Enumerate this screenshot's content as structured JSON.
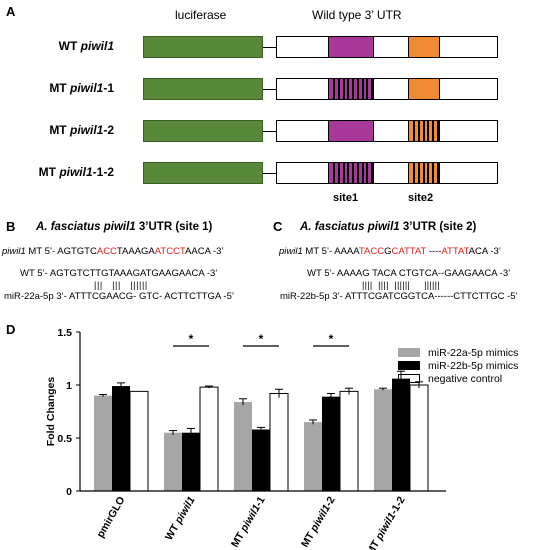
{
  "panel_a": {
    "letter": "A",
    "header_luciferase": "luciferase",
    "header_utr": "Wild type 3’ UTR",
    "rows": [
      {
        "prefix": "WT ",
        "gene": "piwil1",
        "suffix": "",
        "site1_mut": false,
        "site2_mut": false
      },
      {
        "prefix": "MT ",
        "gene": "piwil1",
        "suffix": "-1",
        "site1_mut": true,
        "site2_mut": false
      },
      {
        "prefix": "MT ",
        "gene": "piwil1",
        "suffix": "-2",
        "site1_mut": false,
        "site2_mut": true
      },
      {
        "prefix": "MT ",
        "gene": "piwil1",
        "suffix": "-1-2",
        "site1_mut": true,
        "site2_mut": true
      }
    ],
    "site1_label": "site1",
    "site2_label": "site2",
    "colors": {
      "luciferase": "#58893a",
      "site1": "#a8379a",
      "site2": "#f08a35"
    }
  },
  "panel_b": {
    "letter": "B",
    "title_species": "A. fasciatus piwil1",
    "title_rest": " 3’UTR (site 1)",
    "mt_gene": "piwil1",
    "mt_a": " MT 5’- AGTGTC",
    "mt_red1": "ACC",
    "mt_b": "TAAAGA",
    "mt_red2": "ATCCT",
    "mt_c": "AACA -3’",
    "wt": "WT 5’- AGTGTCTTGTAAAGATGAAGAACA -3’",
    "bars": "|||   |||   ||||||",
    "mir": "miR-22a-5p 3’- ATTTCGAACG- GTC- ACTTCTTGA -5’"
  },
  "panel_c": {
    "letter": "C",
    "title_species": "A. fasciatus piwil1",
    "title_rest": " 3’UTR (site 2)",
    "mt_gene": "piwil1",
    "mt_a": " MT 5’- AAAA",
    "mt_red1": "TACC",
    "mt_b": "G",
    "mt_red2": "CATTAT",
    "mt_c": " ----",
    "mt_red3": "ATTAT",
    "mt_d": "ACA -3’",
    "wt": "WT 5’- AAAAG TACA CTGTCA--GAAGAACA -3’",
    "bars": "||||  ||||  ||||||     ||||||",
    "mir": "miR-22b-5p 3’- ATTTCGATCGGTCA------CTTCTTGC -5’"
  },
  "panel_d": {
    "letter": "D"
  },
  "chart_data": {
    "type": "bar",
    "ylabel": "Fold Changes",
    "ylim": [
      0,
      1.5
    ],
    "yticks": [
      "0",
      "0.5",
      "1",
      "1.5"
    ],
    "categories": [
      {
        "prefix": "",
        "gene": "pmirGLO",
        "suffix": ""
      },
      {
        "prefix": "WT ",
        "gene": "piwil1",
        "suffix": ""
      },
      {
        "prefix": "MT ",
        "gene": "piwil1",
        "suffix": "-1"
      },
      {
        "prefix": "MT ",
        "gene": "piwil1",
        "suffix": "-2"
      },
      {
        "prefix": "MT ",
        "gene": "piwil1",
        "suffix": "-1-2"
      }
    ],
    "series": [
      {
        "name": "miR-22a-5p mimics",
        "color": "#a6a6a6",
        "values": [
          0.9,
          0.55,
          0.84,
          0.65,
          0.96
        ],
        "errors": [
          0.01,
          0.02,
          0.03,
          0.02,
          0.01
        ]
      },
      {
        "name": "miR-22b-5p mimics",
        "color": "#000000",
        "values": [
          0.99,
          0.55,
          0.58,
          0.89,
          1.06
        ],
        "errors": [
          0.03,
          0.04,
          0.02,
          0.03,
          0.07
        ]
      },
      {
        "name": "negative control",
        "color": "#ffffff",
        "values": [
          0.94,
          0.98,
          0.92,
          0.94,
          1.0
        ],
        "errors": [
          0.0,
          0.01,
          0.04,
          0.03,
          0.03
        ]
      }
    ],
    "significance": [
      {
        "category_index": 1,
        "label": "*"
      },
      {
        "category_index": 2,
        "label": "*"
      },
      {
        "category_index": 3,
        "label": "*"
      }
    ]
  }
}
